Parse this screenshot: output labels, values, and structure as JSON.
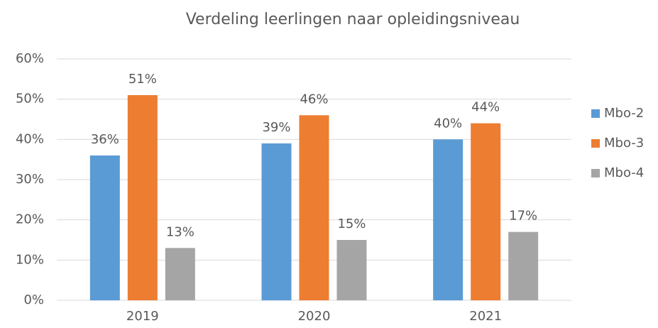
{
  "chart_data": {
    "type": "bar",
    "title": "Verdeling leerlingen naar opleidingsniveau",
    "categories": [
      "2019",
      "2020",
      "2021"
    ],
    "series": [
      {
        "name": "Mbo-2",
        "color": "#5b9bd5",
        "values": [
          36,
          39,
          40
        ],
        "value_labels": [
          "36%",
          "39%",
          "40%"
        ]
      },
      {
        "name": "Mbo-3",
        "color": "#ed7d31",
        "values": [
          51,
          46,
          44
        ],
        "value_labels": [
          "51%",
          "46%",
          "44%"
        ]
      },
      {
        "name": "Mbo-4",
        "color": "#a5a5a5",
        "values": [
          13,
          15,
          17
        ],
        "value_labels": [
          "13%",
          "15%",
          "17%"
        ]
      }
    ],
    "ylim": [
      0,
      60
    ],
    "yticks": [
      {
        "value": 0,
        "label": "0%"
      },
      {
        "value": 10,
        "label": "10%"
      },
      {
        "value": 20,
        "label": "20%"
      },
      {
        "value": 30,
        "label": "30%"
      },
      {
        "value": 40,
        "label": "40%"
      },
      {
        "value": 50,
        "label": "50%"
      },
      {
        "value": 60,
        "label": "60%"
      }
    ],
    "grid": true,
    "legend": "right"
  }
}
